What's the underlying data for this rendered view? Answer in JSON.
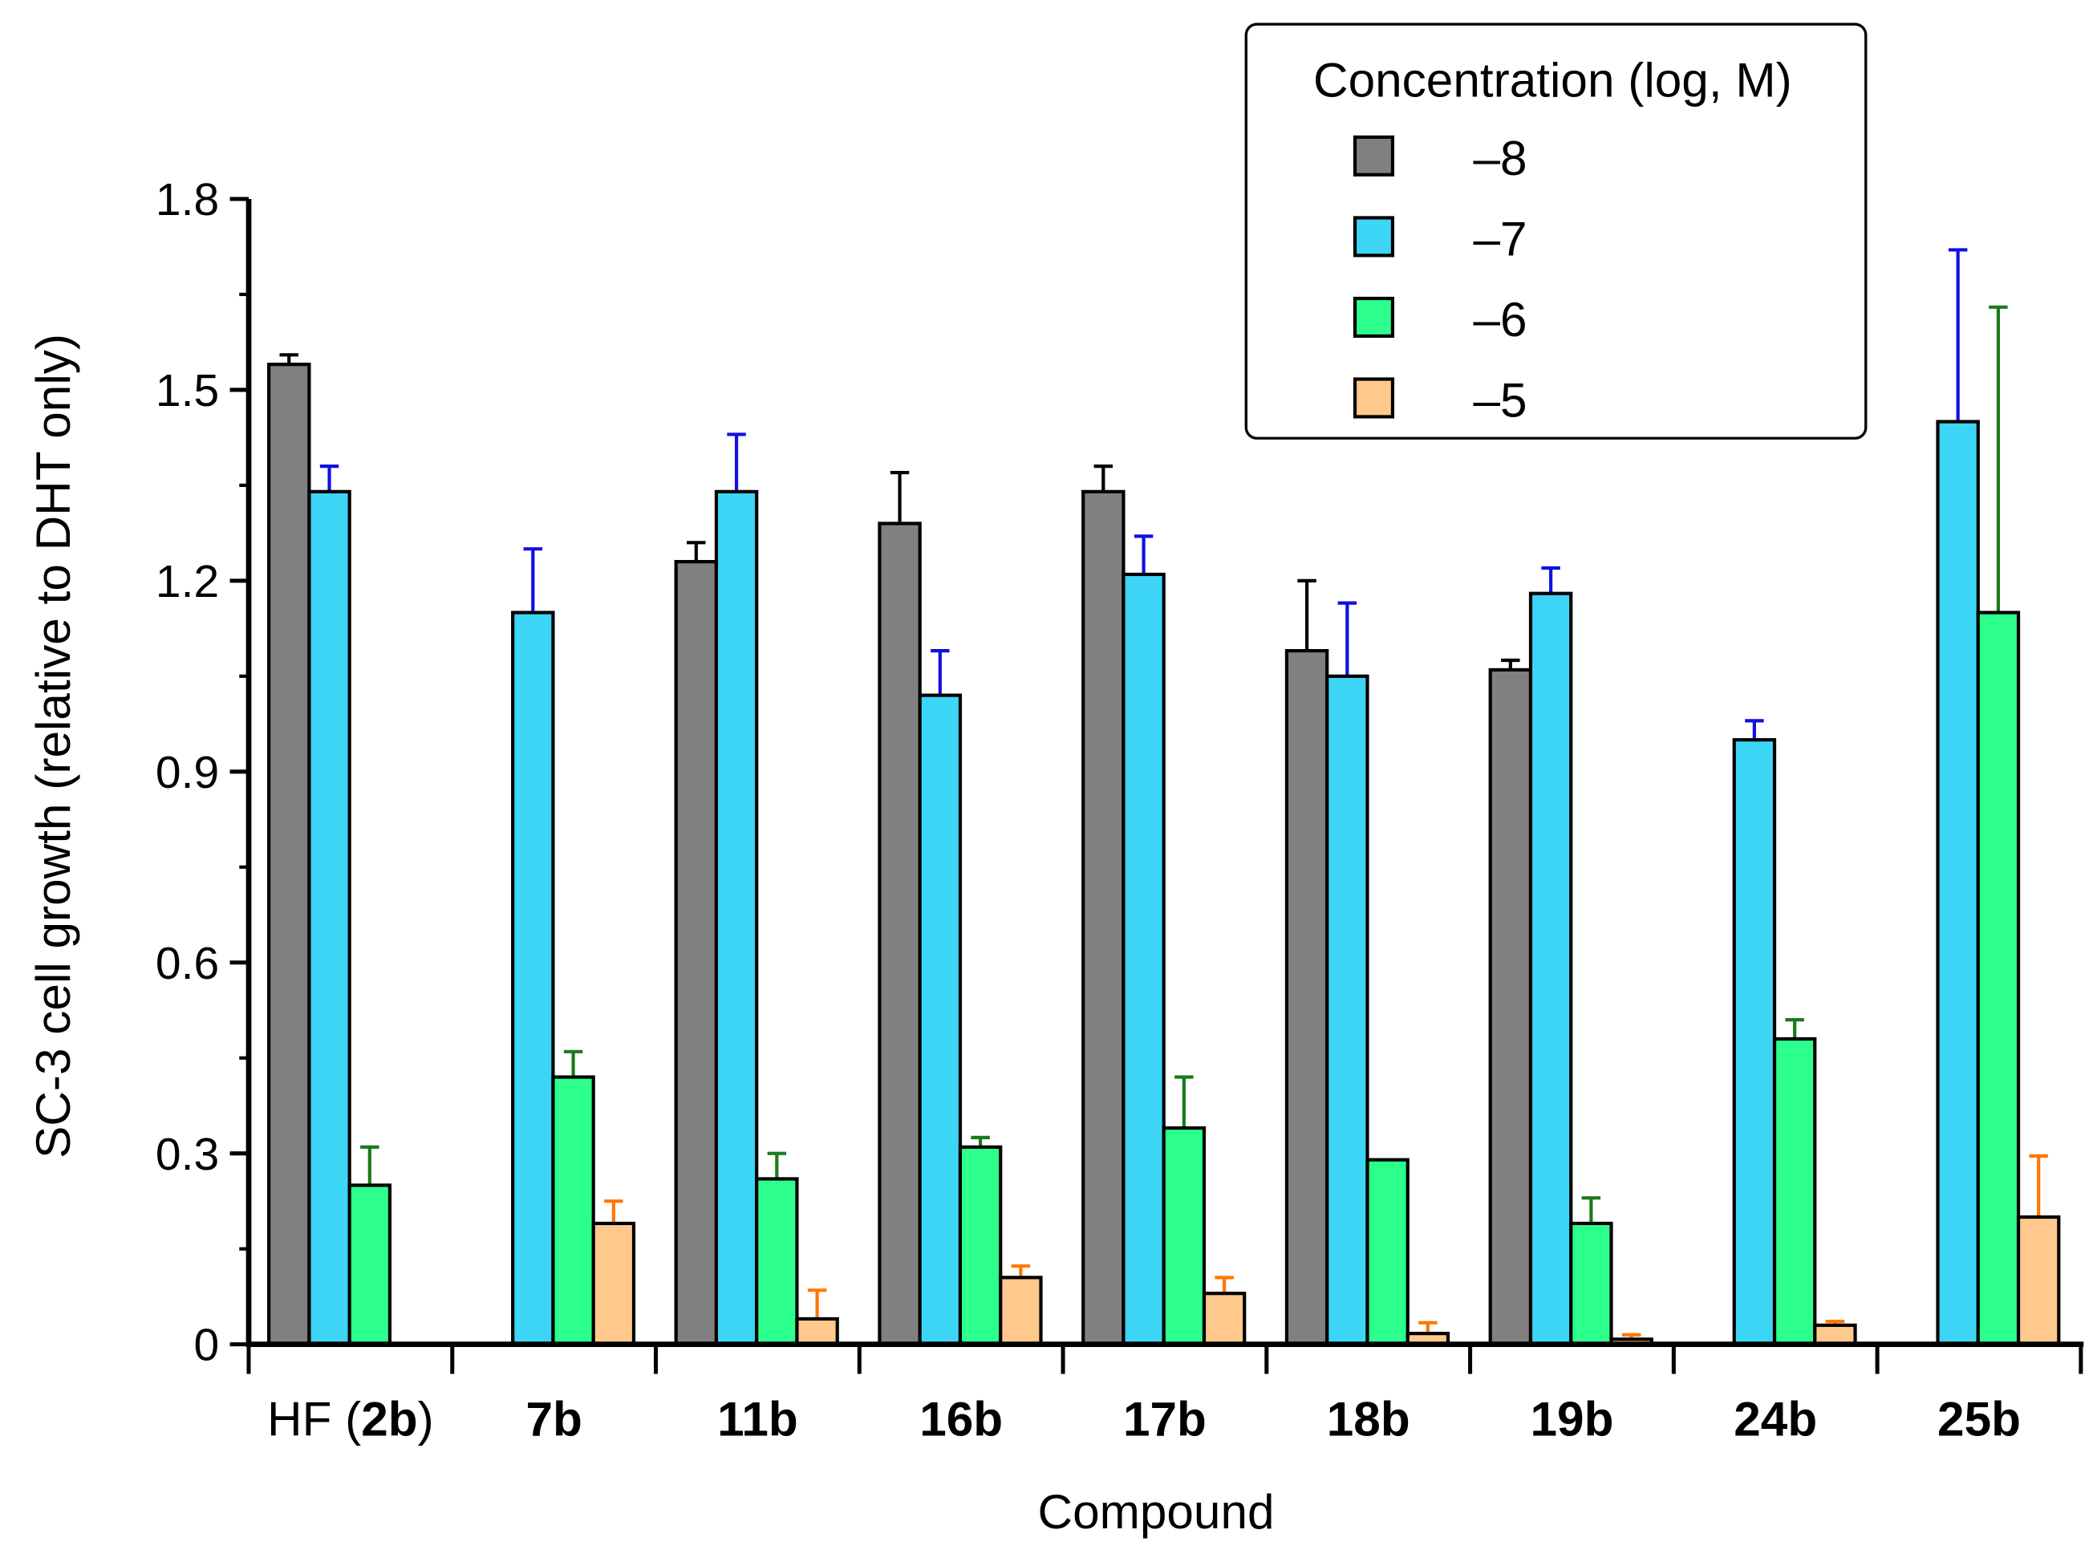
{
  "chart_data": {
    "type": "bar",
    "title": "",
    "xlabel": "Compound",
    "ylabel": "SC-3 cell growth (relative to DHT only)",
    "ylim": [
      0,
      1.8
    ],
    "yticks": [
      "0",
      "0.3",
      "0.6",
      "0.9",
      "1.2",
      "1.5",
      "1.8"
    ],
    "ytick_values": [
      0,
      0.3,
      0.6,
      0.9,
      1.2,
      1.5,
      1.8
    ],
    "grid": false,
    "legend": {
      "title": "Concentration (log, M)",
      "placement": "top-right"
    },
    "categories": [
      "HF (2b)",
      "7b",
      "11b",
      "16b",
      "17b",
      "18b",
      "19b",
      "24b",
      "25b"
    ],
    "series": [
      {
        "name": "–8",
        "color": "#808080",
        "error_color": "#000000",
        "values": [
          1.54,
          null,
          1.23,
          1.29,
          1.34,
          1.09,
          1.06,
          null,
          null
        ],
        "error_upper": [
          1.555,
          null,
          1.26,
          1.37,
          1.38,
          1.2,
          1.075,
          null,
          null
        ]
      },
      {
        "name": "–7",
        "color": "#3dd5f5",
        "error_color": "#1010e0",
        "values": [
          1.34,
          1.15,
          1.34,
          1.02,
          1.21,
          1.05,
          1.18,
          0.95,
          1.45
        ],
        "error_upper": [
          1.38,
          1.25,
          1.43,
          1.09,
          1.27,
          1.165,
          1.22,
          0.98,
          1.72
        ]
      },
      {
        "name": "–6",
        "color": "#2cff8c",
        "error_color": "#1a7a1a",
        "values": [
          0.25,
          0.42,
          0.26,
          0.31,
          0.34,
          0.29,
          0.19,
          0.48,
          1.15
        ],
        "error_upper": [
          0.31,
          0.46,
          0.3,
          0.325,
          0.42,
          null,
          0.23,
          0.51,
          1.63
        ]
      },
      {
        "name": "–5",
        "color": "#ffc88c",
        "error_color": "#ff7700",
        "values": [
          null,
          0.19,
          0.04,
          0.105,
          0.08,
          0.017,
          0.008,
          0.03,
          0.2
        ],
        "error_upper": [
          null,
          0.225,
          0.085,
          0.123,
          0.105,
          0.034,
          0.015,
          0.036,
          0.296
        ]
      }
    ]
  }
}
